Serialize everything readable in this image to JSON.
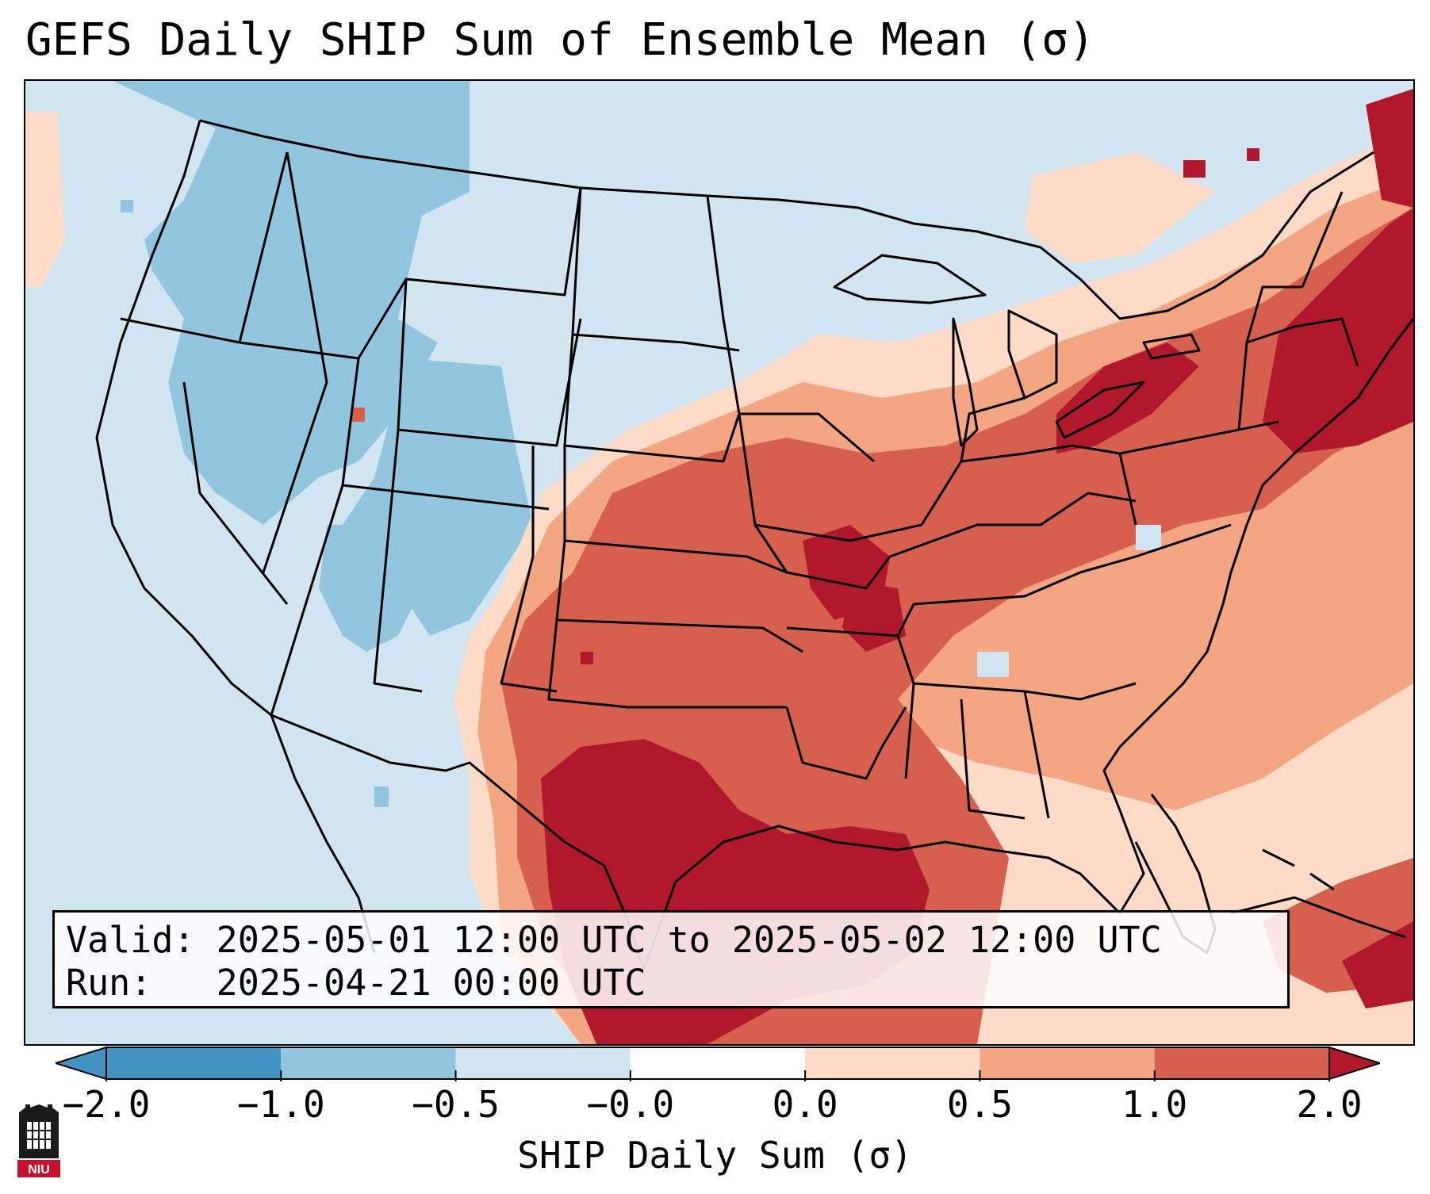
{
  "title": "GEFS Daily SHIP Sum of Ensemble Mean (σ)",
  "info": {
    "valid_label": "Valid:",
    "valid_value": "2025-05-01 12:00 UTC to 2025-05-02 12:00 UTC",
    "run_label": "Run:",
    "run_value": "2025-04-21 00:00 UTC"
  },
  "colorbar": {
    "label": "SHIP Daily Sum (σ)",
    "ticks": [
      "−2.0",
      "−1.0",
      "−0.5",
      "−0.0",
      "0.0",
      "0.5",
      "1.0",
      "2.0"
    ],
    "colors": [
      "#4393c3",
      "#92c5de",
      "#d1e5f0",
      "#ffffff",
      "#fddbc7",
      "#f4a582",
      "#d6604d",
      "#b2182b"
    ],
    "extend": "both"
  },
  "map": {
    "region": "Contiguous United States",
    "colors": {
      "ocean_land_neutral": "#d1e5f0",
      "light_blue": "#92c5de",
      "light_red": "#fddbc7",
      "salmon": "#f4a582",
      "red": "#d6604d",
      "dark_red": "#b2182b"
    }
  },
  "logo": {
    "text": "NIU",
    "icon": "university-tower-icon"
  }
}
